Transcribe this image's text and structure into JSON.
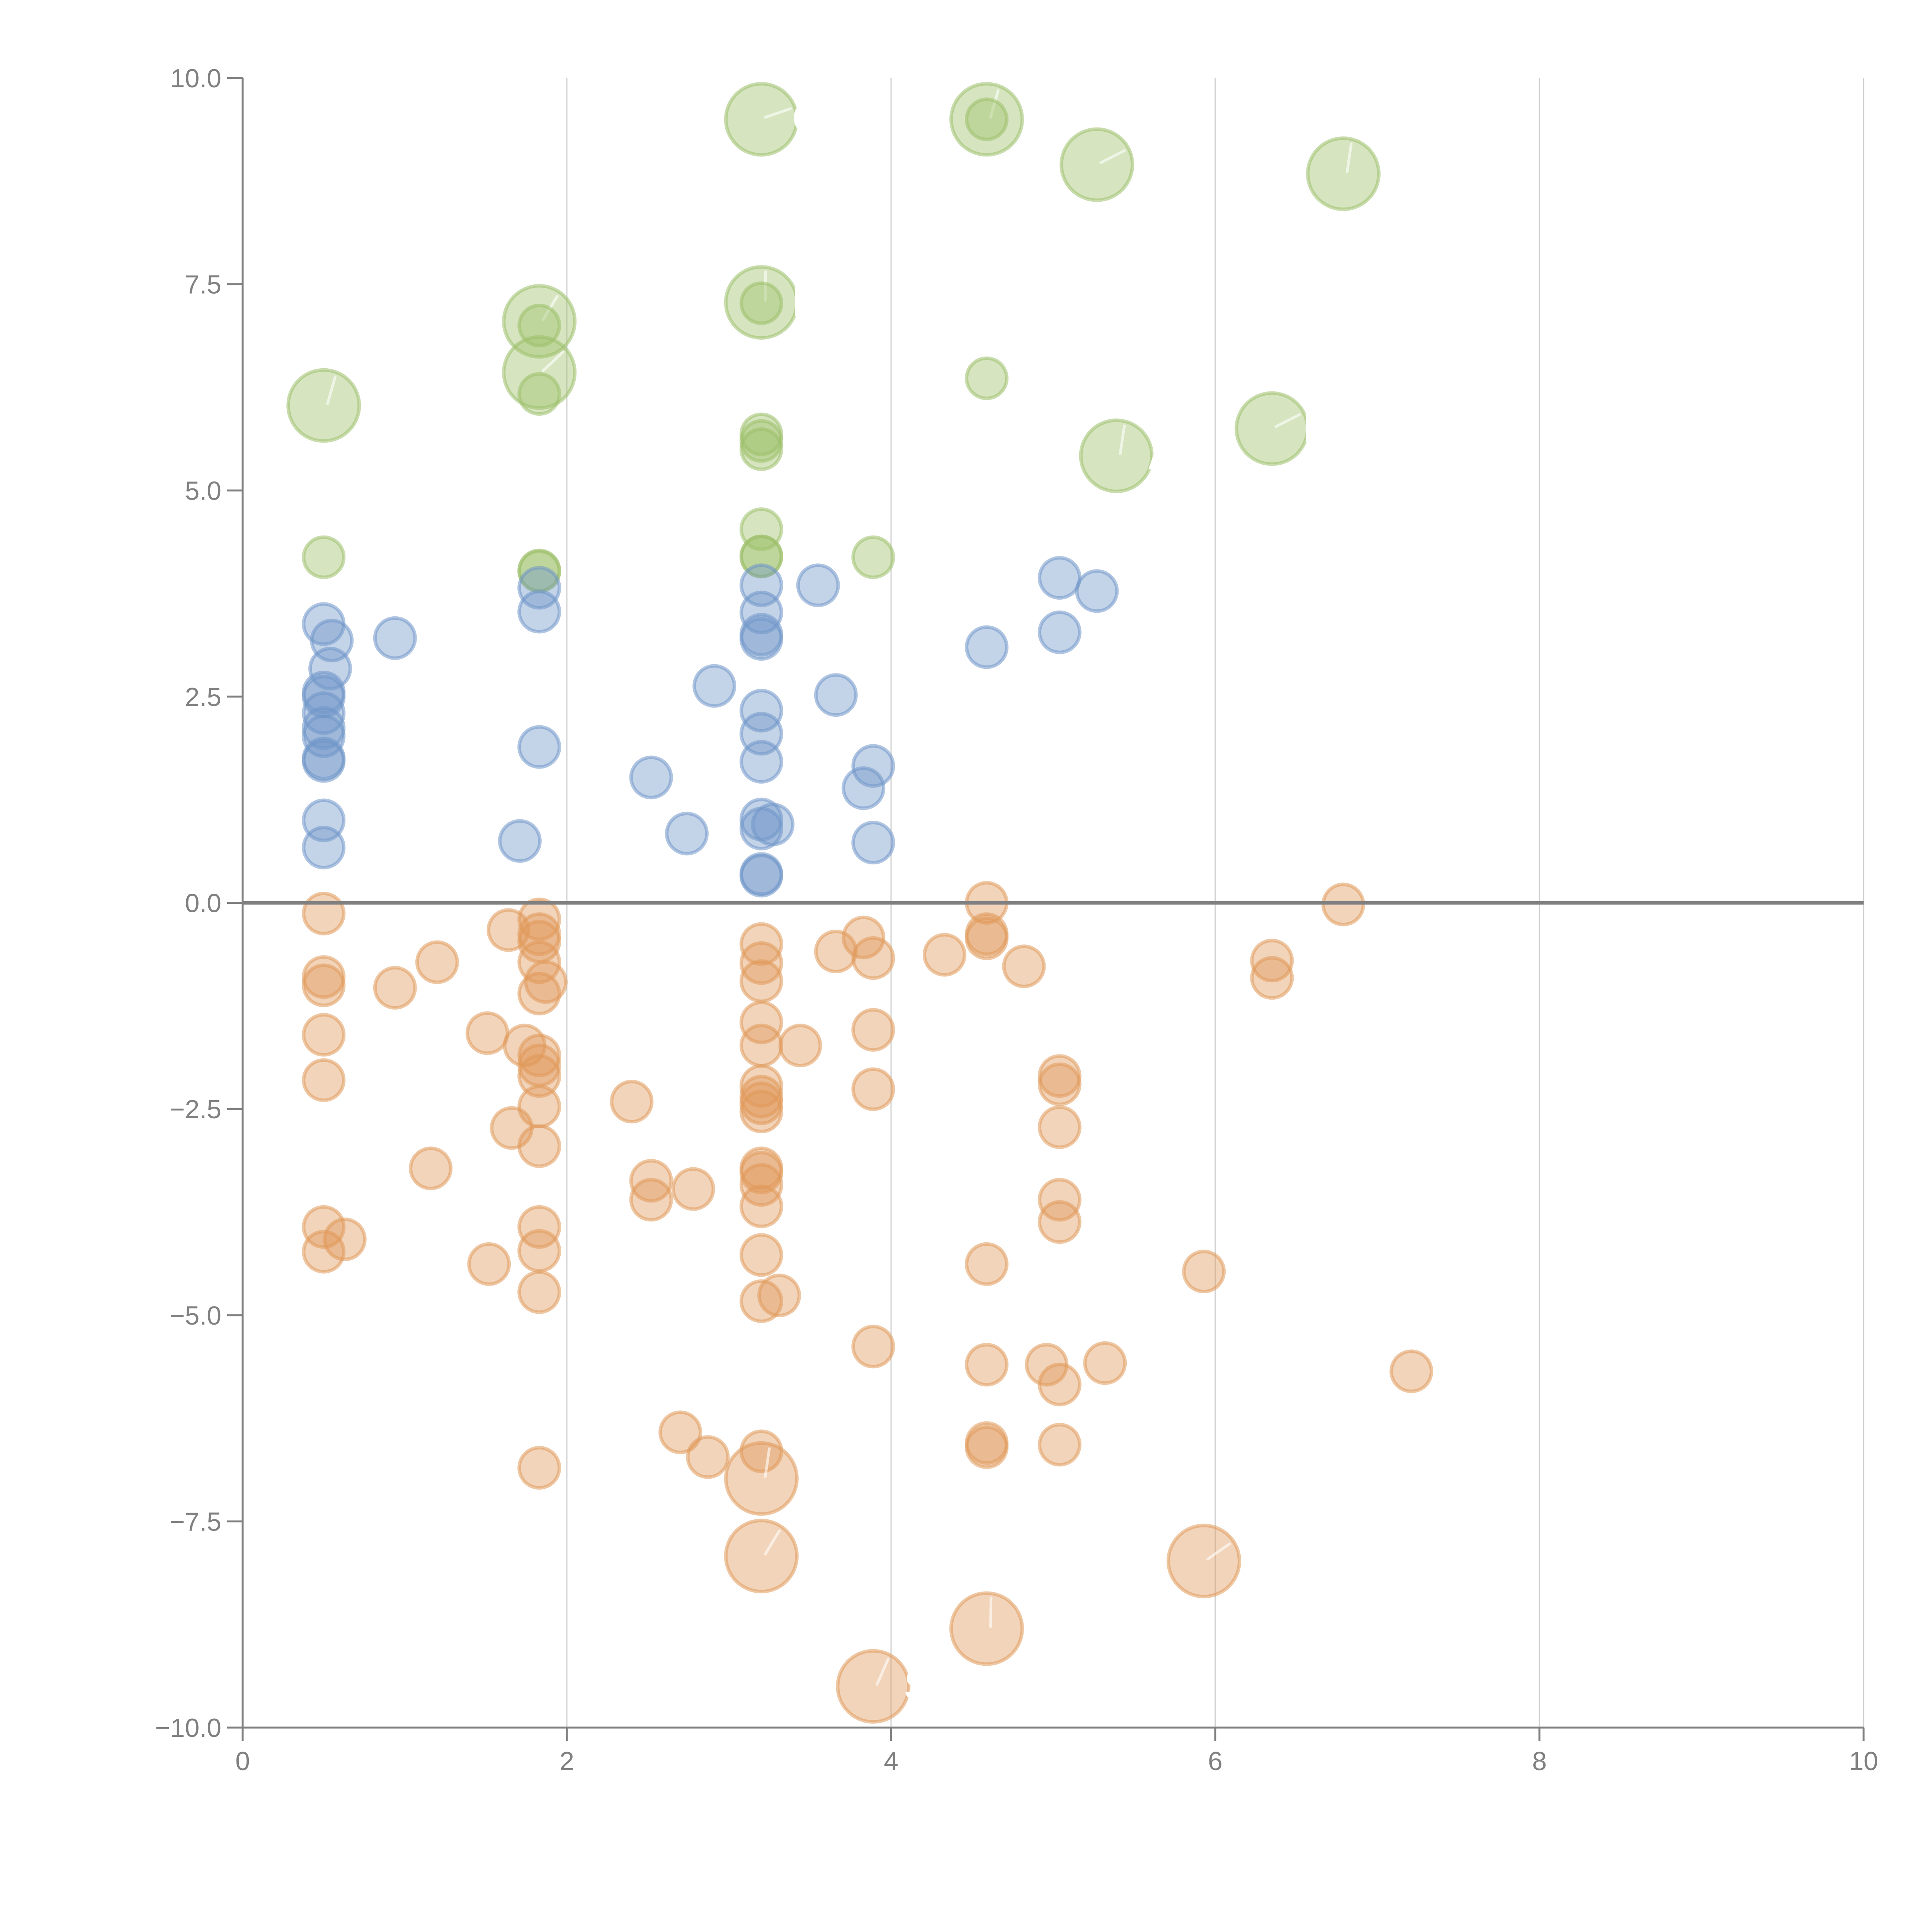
{
  "chart_data": {
    "type": "scatter",
    "subtype": "bubble",
    "title": "",
    "xlabel": "",
    "ylabel": "",
    "xlim": [
      0,
      10
    ],
    "ylim": [
      -10,
      10
    ],
    "grid": "vertical",
    "zero_line": true,
    "legend": "none",
    "x_ticks": [
      "0",
      "2",
      "4",
      "6",
      "8",
      "10"
    ],
    "y_ticks": [
      "10.0",
      "7.5",
      "5.0",
      "2.5",
      "0.0",
      "−2.5",
      "−5.0",
      "−7.5",
      "−10.0"
    ],
    "x_tick_values": [
      0,
      2,
      4,
      6,
      8,
      10
    ],
    "y_tick_values": [
      10,
      7.5,
      5,
      2.5,
      0,
      -2.5,
      -5,
      -7.5,
      -10
    ],
    "series": [
      {
        "name": "green",
        "color": "#9dc06a",
        "points": [
          {
            "x": 3.2,
            "y": 9.5,
            "size": "large",
            "label": "G"
          },
          {
            "x": 4.59,
            "y": 9.5,
            "size": "large"
          },
          {
            "x": 4.59,
            "y": 9.5,
            "size": "small"
          },
          {
            "x": 5.27,
            "y": 8.95,
            "size": "large"
          },
          {
            "x": 6.79,
            "y": 8.84,
            "size": "large"
          },
          {
            "x": 1.83,
            "y": 7.05,
            "size": "large"
          },
          {
            "x": 1.83,
            "y": 7.0,
            "size": "small"
          },
          {
            "x": 3.2,
            "y": 7.28,
            "size": "large",
            "label": "L"
          },
          {
            "x": 3.2,
            "y": 7.27,
            "size": "small"
          },
          {
            "x": 1.83,
            "y": 6.43,
            "size": "large"
          },
          {
            "x": 1.83,
            "y": 6.17,
            "size": "small"
          },
          {
            "x": 0.5,
            "y": 6.03,
            "size": "large"
          },
          {
            "x": 4.59,
            "y": 6.36,
            "size": "small"
          },
          {
            "x": 6.35,
            "y": 5.75,
            "size": "large",
            "label": "D"
          },
          {
            "x": 5.39,
            "y": 5.42,
            "size": "large",
            "label": "A"
          },
          {
            "x": 3.2,
            "y": 5.68,
            "size": "small"
          },
          {
            "x": 3.2,
            "y": 5.6,
            "size": "small"
          },
          {
            "x": 3.2,
            "y": 5.5,
            "size": "small"
          },
          {
            "x": 3.2,
            "y": 4.53,
            "size": "small"
          },
          {
            "x": 3.2,
            "y": 4.2,
            "size": "small"
          },
          {
            "x": 3.2,
            "y": 4.2,
            "size": "small"
          },
          {
            "x": 3.89,
            "y": 4.19,
            "size": "small"
          },
          {
            "x": 0.5,
            "y": 4.19,
            "size": "small"
          },
          {
            "x": 1.83,
            "y": 4.03,
            "size": "small"
          },
          {
            "x": 1.83,
            "y": 4.02,
            "size": "small"
          }
        ]
      },
      {
        "name": "blue",
        "color": "#6f96c9",
        "points": [
          {
            "x": 1.83,
            "y": 3.82,
            "size": "small"
          },
          {
            "x": 1.83,
            "y": 3.53,
            "size": "small"
          },
          {
            "x": 3.2,
            "y": 3.85,
            "size": "small"
          },
          {
            "x": 3.2,
            "y": 3.52,
            "size": "small"
          },
          {
            "x": 3.2,
            "y": 3.25,
            "size": "small"
          },
          {
            "x": 3.2,
            "y": 3.2,
            "size": "small"
          },
          {
            "x": 3.55,
            "y": 3.85,
            "size": "small"
          },
          {
            "x": 5.04,
            "y": 3.94,
            "size": "small"
          },
          {
            "x": 5.27,
            "y": 3.78,
            "size": "small"
          },
          {
            "x": 5.04,
            "y": 3.28,
            "size": "small"
          },
          {
            "x": 4.59,
            "y": 3.1,
            "size": "small"
          },
          {
            "x": 0.5,
            "y": 3.38,
            "size": "small"
          },
          {
            "x": 0.55,
            "y": 3.18,
            "size": "small"
          },
          {
            "x": 0.94,
            "y": 3.21,
            "size": "small"
          },
          {
            "x": 0.54,
            "y": 2.84,
            "size": "small"
          },
          {
            "x": 0.5,
            "y": 2.55,
            "size": "small"
          },
          {
            "x": 0.5,
            "y": 2.5,
            "size": "small"
          },
          {
            "x": 0.5,
            "y": 2.3,
            "size": "small"
          },
          {
            "x": 0.5,
            "y": 2.12,
            "size": "small"
          },
          {
            "x": 0.5,
            "y": 2.02,
            "size": "small"
          },
          {
            "x": 0.5,
            "y": 1.75,
            "size": "small"
          },
          {
            "x": 0.5,
            "y": 1.72,
            "size": "small"
          },
          {
            "x": 0.5,
            "y": 1.0,
            "size": "small"
          },
          {
            "x": 0.5,
            "y": 0.67,
            "size": "small"
          },
          {
            "x": 2.91,
            "y": 2.63,
            "size": "small"
          },
          {
            "x": 3.66,
            "y": 2.52,
            "size": "small"
          },
          {
            "x": 3.2,
            "y": 2.33,
            "size": "small"
          },
          {
            "x": 3.2,
            "y": 2.05,
            "size": "small"
          },
          {
            "x": 1.83,
            "y": 1.89,
            "size": "small"
          },
          {
            "x": 3.2,
            "y": 1.71,
            "size": "small"
          },
          {
            "x": 3.89,
            "y": 1.66,
            "size": "small"
          },
          {
            "x": 3.83,
            "y": 1.39,
            "size": "small"
          },
          {
            "x": 2.52,
            "y": 1.52,
            "size": "small"
          },
          {
            "x": 3.2,
            "y": 1.01,
            "size": "small"
          },
          {
            "x": 3.27,
            "y": 0.95,
            "size": "small"
          },
          {
            "x": 3.2,
            "y": 0.9,
            "size": "small"
          },
          {
            "x": 2.74,
            "y": 0.84,
            "size": "small"
          },
          {
            "x": 1.71,
            "y": 0.75,
            "size": "small"
          },
          {
            "x": 3.89,
            "y": 0.73,
            "size": "small"
          },
          {
            "x": 3.2,
            "y": 0.35,
            "size": "small"
          },
          {
            "x": 3.2,
            "y": 0.33,
            "size": "small"
          }
        ]
      },
      {
        "name": "orange",
        "color": "#e0995a",
        "points": [
          {
            "x": 4.59,
            "y": 0.0,
            "size": "small"
          },
          {
            "x": 6.79,
            "y": -0.02,
            "size": "small"
          },
          {
            "x": 0.5,
            "y": -0.13,
            "size": "small"
          },
          {
            "x": 1.83,
            "y": -0.2,
            "size": "small"
          },
          {
            "x": 1.64,
            "y": -0.33,
            "size": "small"
          },
          {
            "x": 1.83,
            "y": -0.38,
            "size": "small"
          },
          {
            "x": 1.83,
            "y": -0.47,
            "size": "small"
          },
          {
            "x": 3.2,
            "y": -0.5,
            "size": "small"
          },
          {
            "x": 3.83,
            "y": -0.42,
            "size": "small"
          },
          {
            "x": 4.59,
            "y": -0.38,
            "size": "small"
          },
          {
            "x": 4.59,
            "y": -0.43,
            "size": "small"
          },
          {
            "x": 3.66,
            "y": -0.59,
            "size": "small"
          },
          {
            "x": 4.33,
            "y": -0.63,
            "size": "small"
          },
          {
            "x": 3.89,
            "y": -0.67,
            "size": "small"
          },
          {
            "x": 1.2,
            "y": -0.72,
            "size": "small"
          },
          {
            "x": 1.83,
            "y": -0.72,
            "size": "small"
          },
          {
            "x": 3.2,
            "y": -0.73,
            "size": "small"
          },
          {
            "x": 4.82,
            "y": -0.77,
            "size": "small"
          },
          {
            "x": 6.35,
            "y": -0.7,
            "size": "small"
          },
          {
            "x": 6.35,
            "y": -0.91,
            "size": "small"
          },
          {
            "x": 0.5,
            "y": -0.9,
            "size": "small"
          },
          {
            "x": 0.5,
            "y": -1.0,
            "size": "small"
          },
          {
            "x": 1.87,
            "y": -0.96,
            "size": "small"
          },
          {
            "x": 3.2,
            "y": -0.95,
            "size": "small"
          },
          {
            "x": 0.94,
            "y": -1.03,
            "size": "small"
          },
          {
            "x": 1.83,
            "y": -1.1,
            "size": "small"
          },
          {
            "x": 3.2,
            "y": -1.45,
            "size": "small"
          },
          {
            "x": 1.51,
            "y": -1.58,
            "size": "small"
          },
          {
            "x": 0.5,
            "y": -1.6,
            "size": "small"
          },
          {
            "x": 3.89,
            "y": -1.54,
            "size": "small"
          },
          {
            "x": 1.74,
            "y": -1.73,
            "size": "small"
          },
          {
            "x": 3.2,
            "y": -1.73,
            "size": "small"
          },
          {
            "x": 3.44,
            "y": -1.73,
            "size": "small"
          },
          {
            "x": 1.83,
            "y": -1.85,
            "size": "small"
          },
          {
            "x": 1.83,
            "y": -1.97,
            "size": "small"
          },
          {
            "x": 1.83,
            "y": -2.1,
            "size": "small"
          },
          {
            "x": 5.04,
            "y": -2.1,
            "size": "small"
          },
          {
            "x": 0.5,
            "y": -2.15,
            "size": "small"
          },
          {
            "x": 5.04,
            "y": -2.2,
            "size": "small"
          },
          {
            "x": 3.2,
            "y": -2.22,
            "size": "small"
          },
          {
            "x": 3.89,
            "y": -2.26,
            "size": "small"
          },
          {
            "x": 3.2,
            "y": -2.35,
            "size": "small"
          },
          {
            "x": 3.2,
            "y": -2.43,
            "size": "small"
          },
          {
            "x": 2.4,
            "y": -2.41,
            "size": "small"
          },
          {
            "x": 1.83,
            "y": -2.47,
            "size": "small"
          },
          {
            "x": 3.2,
            "y": -2.53,
            "size": "small"
          },
          {
            "x": 1.66,
            "y": -2.73,
            "size": "small"
          },
          {
            "x": 5.04,
            "y": -2.72,
            "size": "small"
          },
          {
            "x": 1.83,
            "y": -2.95,
            "size": "small"
          },
          {
            "x": 1.16,
            "y": -3.22,
            "size": "small"
          },
          {
            "x": 3.2,
            "y": -3.22,
            "size": "small"
          },
          {
            "x": 3.2,
            "y": -3.27,
            "size": "small"
          },
          {
            "x": 2.52,
            "y": -3.37,
            "size": "small"
          },
          {
            "x": 3.2,
            "y": -3.42,
            "size": "small"
          },
          {
            "x": 2.78,
            "y": -3.47,
            "size": "small"
          },
          {
            "x": 2.52,
            "y": -3.6,
            "size": "small"
          },
          {
            "x": 5.04,
            "y": -3.6,
            "size": "small"
          },
          {
            "x": 3.2,
            "y": -3.68,
            "size": "small"
          },
          {
            "x": 5.04,
            "y": -3.87,
            "size": "small"
          },
          {
            "x": 0.5,
            "y": -3.93,
            "size": "small"
          },
          {
            "x": 1.83,
            "y": -3.93,
            "size": "small"
          },
          {
            "x": 0.63,
            "y": -4.08,
            "size": "small"
          },
          {
            "x": 0.5,
            "y": -4.23,
            "size": "small"
          },
          {
            "x": 1.83,
            "y": -4.22,
            "size": "small"
          },
          {
            "x": 3.2,
            "y": -4.27,
            "size": "small"
          },
          {
            "x": 1.52,
            "y": -4.38,
            "size": "small"
          },
          {
            "x": 4.59,
            "y": -4.38,
            "size": "small"
          },
          {
            "x": 5.93,
            "y": -4.47,
            "size": "small"
          },
          {
            "x": 1.83,
            "y": -4.72,
            "size": "small"
          },
          {
            "x": 3.31,
            "y": -4.76,
            "size": "small"
          },
          {
            "x": 3.2,
            "y": -4.83,
            "size": "small"
          },
          {
            "x": 3.89,
            "y": -5.38,
            "size": "small"
          },
          {
            "x": 4.59,
            "y": -5.6,
            "size": "small"
          },
          {
            "x": 4.96,
            "y": -5.6,
            "size": "small"
          },
          {
            "x": 5.32,
            "y": -5.58,
            "size": "small"
          },
          {
            "x": 7.21,
            "y": -5.68,
            "size": "small"
          },
          {
            "x": 5.04,
            "y": -5.84,
            "size": "small"
          },
          {
            "x": 2.7,
            "y": -6.42,
            "size": "small"
          },
          {
            "x": 5.04,
            "y": -6.57,
            "size": "small"
          },
          {
            "x": 4.59,
            "y": -6.55,
            "size": "small"
          },
          {
            "x": 4.59,
            "y": -6.6,
            "size": "small"
          },
          {
            "x": 3.2,
            "y": -6.65,
            "size": "small"
          },
          {
            "x": 2.87,
            "y": -6.72,
            "size": "small"
          },
          {
            "x": 1.83,
            "y": -6.85,
            "size": "small"
          },
          {
            "x": 3.2,
            "y": -6.98,
            "size": "large"
          },
          {
            "x": 3.2,
            "y": -7.92,
            "size": "large"
          },
          {
            "x": 5.93,
            "y": -7.98,
            "size": "large"
          },
          {
            "x": 4.59,
            "y": -8.8,
            "size": "large"
          },
          {
            "x": 3.89,
            "y": -9.5,
            "size": "large",
            "label": "S"
          }
        ]
      }
    ]
  }
}
